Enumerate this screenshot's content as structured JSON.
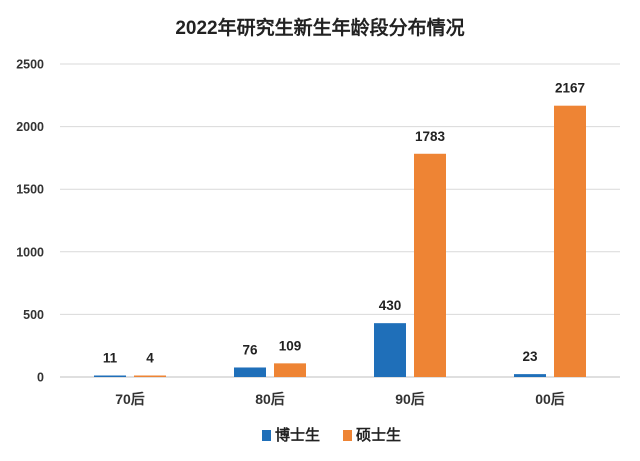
{
  "chart_data": {
    "type": "bar",
    "title": "2022年研究生新生年龄段分布情况",
    "categories": [
      "70后",
      "80后",
      "90后",
      "00后"
    ],
    "series": [
      {
        "name": "博士生",
        "color": "#1f6fb9",
        "values": [
          11,
          76,
          430,
          23
        ]
      },
      {
        "name": "硕士生",
        "color": "#ee8434",
        "values": [
          4,
          109,
          1783,
          2167
        ]
      }
    ],
    "ylim": [
      0,
      2500
    ],
    "yticks": [
      0,
      500,
      1000,
      1500,
      2000,
      2500
    ],
    "grid": true,
    "legend": "bottom"
  }
}
